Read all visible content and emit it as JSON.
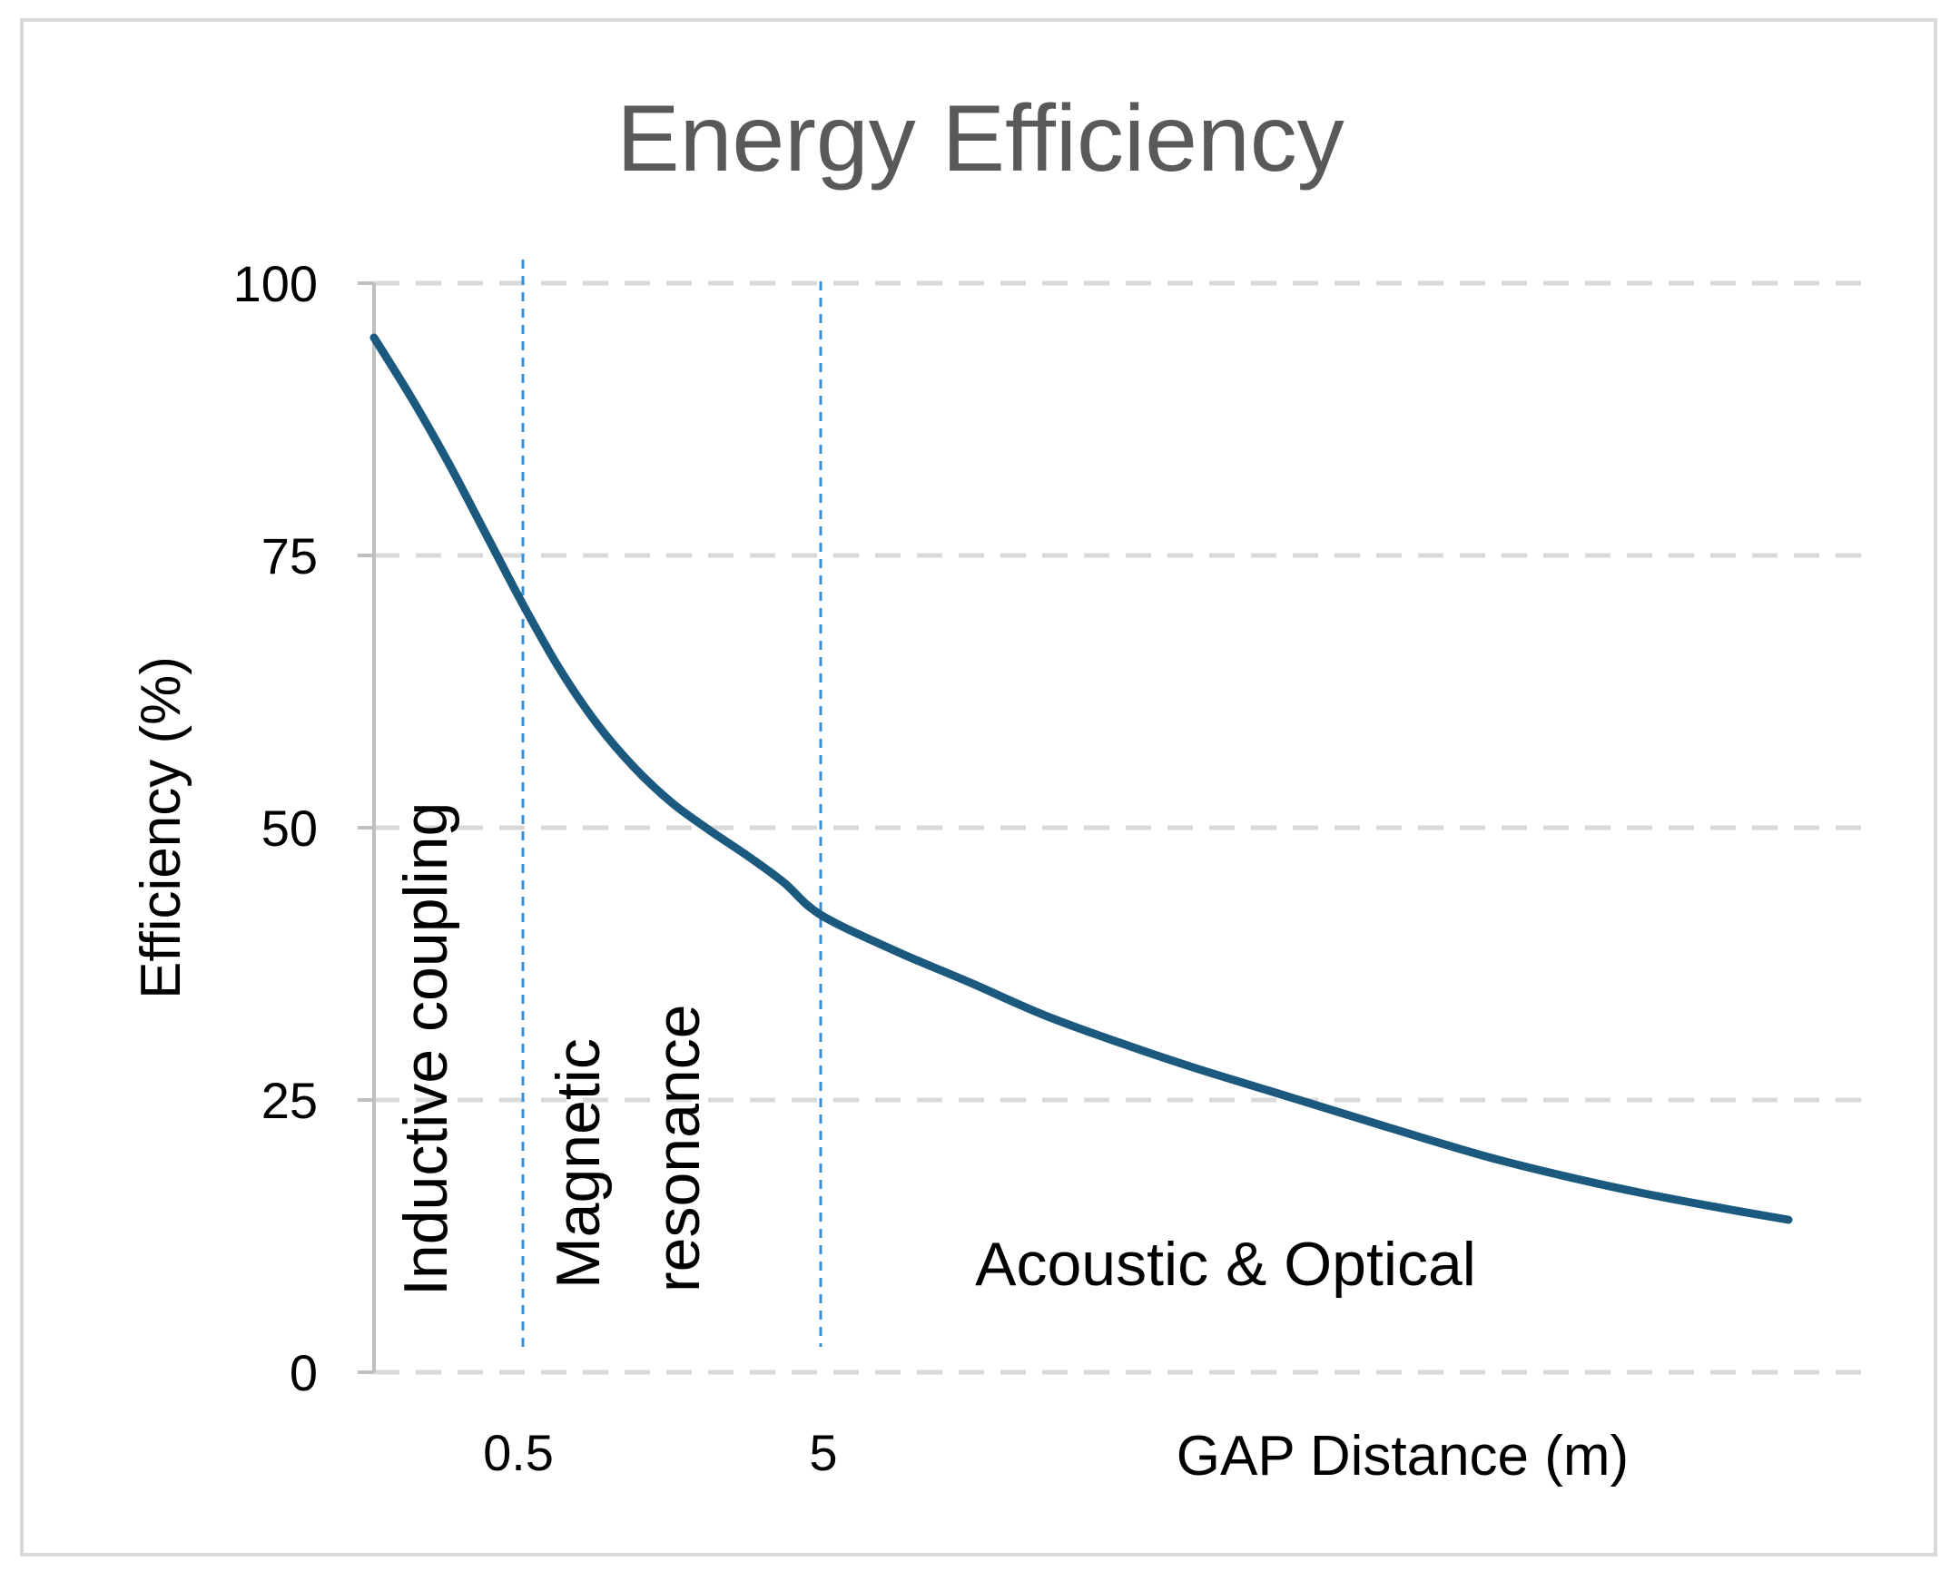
{
  "chart_data": {
    "type": "line",
    "title": "Energy Efficiency",
    "xlabel": "GAP Distance (m)",
    "ylabel": "Efficiency (%)",
    "ylim": [
      0,
      100
    ],
    "yticks": [
      "0",
      "25",
      "50",
      "75",
      "100"
    ],
    "ytick_values": [
      0,
      25,
      50,
      75,
      100
    ],
    "xlim": [
      0,
      10
    ],
    "xtick_labels": [
      {
        "label": "0.5",
        "x": 1
      },
      {
        "label": "5",
        "x": 3
      }
    ],
    "grid": true,
    "series": [
      {
        "name": "Efficiency",
        "color": "#1b5a7e",
        "x": [
          0,
          0.25,
          0.5,
          0.75,
          1.0,
          1.25,
          1.5,
          1.75,
          2.0,
          2.25,
          2.5,
          2.75,
          3.0,
          3.5,
          4.0,
          4.5,
          5.0,
          5.5,
          6.0,
          6.5,
          7.0,
          7.5,
          8.0,
          8.5,
          9.0,
          9.5
        ],
        "values": [
          95,
          89.5,
          83.5,
          77,
          70.5,
          64.5,
          59.5,
          55.5,
          52.3,
          49.8,
          47.5,
          45,
          42,
          38.7,
          35.8,
          32.8,
          30.3,
          28,
          25.9,
          23.8,
          21.7,
          19.7,
          18,
          16.5,
          15.2,
          14
        ]
      }
    ],
    "dividers": [
      {
        "x": 1,
        "color": "#3a8fd9"
      },
      {
        "x": 3,
        "color": "#3a8fd9"
      }
    ],
    "regions": [
      {
        "label": "Inductive coupling",
        "orientation": "vertical"
      },
      {
        "label": "Magnetic",
        "orientation": "vertical"
      },
      {
        "label": "resonance",
        "orientation": "vertical"
      },
      {
        "label": "Acoustic & Optical",
        "orientation": "horizontal"
      }
    ]
  },
  "colors": {
    "title": "#595959",
    "gridline": "#d9d9d9",
    "axis": "#bfbfbf",
    "line": "#1b5a7e",
    "divider": "#3a8fd9",
    "frame": "#d9d9d9"
  }
}
